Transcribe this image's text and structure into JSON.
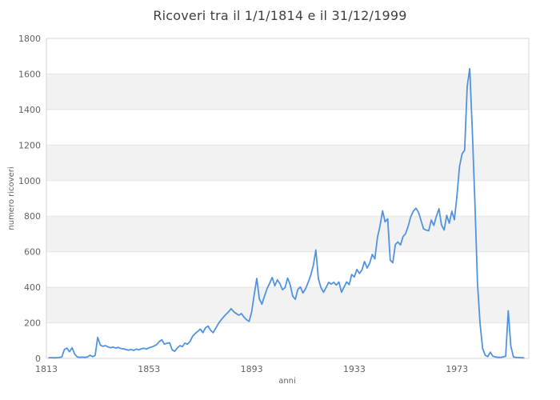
{
  "chart_data": {
    "type": "line",
    "title": "Ricoveri tra il 1/1/1814 e il 31/12/1999",
    "xlabel": "anni",
    "ylabel": "numero ricoveri",
    "xlim": [
      1813,
      2001
    ],
    "ylim": [
      0,
      1800
    ],
    "x_ticks": [
      1813,
      1853,
      1893,
      1933,
      1973
    ],
    "y_ticks": [
      0,
      200,
      400,
      600,
      800,
      1000,
      1200,
      1400,
      1600,
      1800
    ],
    "grid": "horizontal",
    "alternate_bands": true,
    "legend": "none",
    "x_start_year": 1814,
    "series": [
      {
        "name": "ricoveri",
        "color": "#5193e2",
        "values": [
          4,
          4,
          3,
          4,
          5,
          8,
          50,
          58,
          38,
          60,
          25,
          8,
          6,
          7,
          6,
          8,
          18,
          10,
          16,
          118,
          75,
          68,
          72,
          65,
          60,
          64,
          58,
          62,
          56,
          54,
          50,
          46,
          50,
          45,
          52,
          48,
          54,
          57,
          52,
          60,
          64,
          70,
          78,
          95,
          105,
          80,
          85,
          88,
          48,
          40,
          58,
          72,
          66,
          86,
          80,
          96,
          125,
          140,
          152,
          165,
          145,
          172,
          182,
          158,
          145,
          170,
          195,
          215,
          232,
          248,
          262,
          280,
          263,
          252,
          243,
          252,
          232,
          218,
          208,
          262,
          360,
          450,
          335,
          305,
          350,
          392,
          422,
          455,
          408,
          442,
          420,
          386,
          398,
          452,
          415,
          350,
          332,
          388,
          402,
          368,
          392,
          428,
          468,
          522,
          610,
          448,
          398,
          372,
          398,
          428,
          418,
          428,
          412,
          430,
          372,
          402,
          430,
          415,
          472,
          458,
          500,
          478,
          498,
          545,
          508,
          535,
          585,
          560,
          680,
          745,
          830,
          768,
          785,
          552,
          538,
          640,
          655,
          638,
          685,
          702,
          745,
          798,
          828,
          845,
          822,
          775,
          728,
          722,
          718,
          778,
          748,
          800,
          842,
          750,
          722,
          805,
          760,
          828,
          780,
          915,
          1080,
          1150,
          1172,
          1530,
          1630,
          1280,
          880,
          420,
          195,
          55,
          18,
          10,
          35,
          12,
          8,
          6,
          6,
          8,
          12,
          268,
          70,
          8,
          6,
          5,
          4,
          3
        ]
      }
    ]
  },
  "style": {
    "line_color": "#5193e2",
    "band_color": "#f2f2f2",
    "grid_color": "#e4e4e4",
    "border_color": "#d4d4d4",
    "tick_color": "#636363",
    "title_color": "#3f3f3f",
    "background": "#ffffff"
  }
}
